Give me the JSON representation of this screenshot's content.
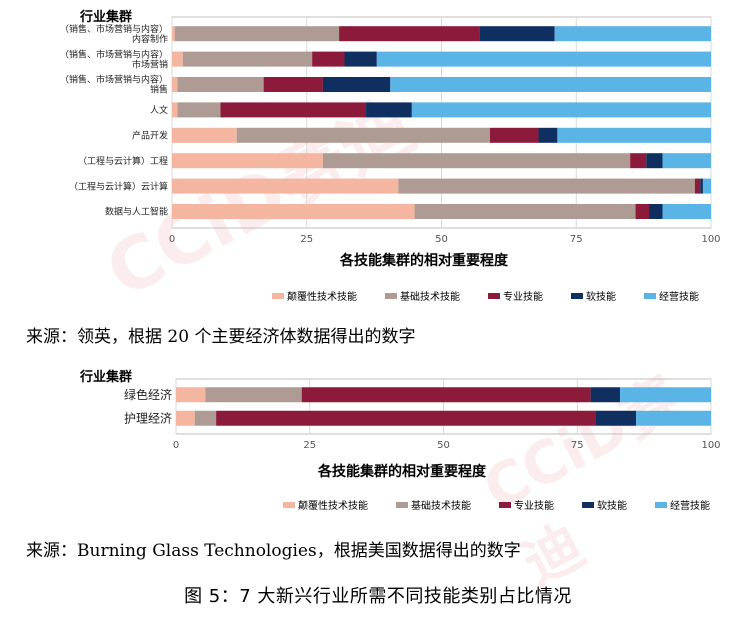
{
  "chart_data": [
    {
      "type": "bar",
      "orientation": "horizontal",
      "stacked": true,
      "ylabel": "行业集群",
      "xlabel": "各技能集群的相对重要程度",
      "xlim": [
        0,
        100
      ],
      "xticks": [
        "0",
        "25",
        "50",
        "75",
        "100"
      ],
      "grid": true,
      "legend_position": "bottom",
      "categories": [
        [
          "（销售、市场营销与内容）",
          "内容制作"
        ],
        [
          "（销售、市场营销与内容）",
          "市场营销"
        ],
        [
          "（销售、市场营销与内容）",
          "销售"
        ],
        [
          "人文"
        ],
        [
          "产品开发"
        ],
        [
          "（工程与云计算）工程"
        ],
        [
          "（工程与云计算）云计算"
        ],
        [
          "数据与人工智能"
        ]
      ],
      "series": [
        {
          "name": "颠覆性技术技能",
          "values": [
            0.5,
            2,
            1,
            1,
            12,
            28,
            42,
            45
          ]
        },
        {
          "name": "基础技术技能",
          "values": [
            30.5,
            24,
            16,
            8,
            47,
            57,
            55,
            41
          ]
        },
        {
          "name": "专业技能",
          "values": [
            26,
            6,
            11,
            27,
            9,
            3,
            1,
            2.5
          ]
        },
        {
          "name": "软技能",
          "values": [
            14,
            6,
            12.5,
            8.5,
            3.5,
            3,
            0.5,
            2.5
          ]
        },
        {
          "name": "经营技能",
          "values": [
            29,
            62,
            59.5,
            55.5,
            28.5,
            9,
            1.5,
            9
          ]
        }
      ]
    },
    {
      "type": "bar",
      "orientation": "horizontal",
      "stacked": true,
      "ylabel": "行业集群",
      "xlabel": "各技能集群的相对重要程度",
      "xlim": [
        0,
        100
      ],
      "xticks": [
        "0",
        "25",
        "50",
        "75",
        "100"
      ],
      "grid": true,
      "legend_position": "bottom",
      "categories": [
        [
          "绿色经济"
        ],
        [
          "护理经济"
        ]
      ],
      "series": [
        {
          "name": "颠覆性技术技能",
          "values": [
            5.5,
            3.5
          ]
        },
        {
          "name": "基础技术技能",
          "values": [
            18,
            4
          ]
        },
        {
          "name": "专业技能",
          "values": [
            54,
            71
          ]
        },
        {
          "name": "软技能",
          "values": [
            5.5,
            7.5
          ]
        },
        {
          "name": "经营技能",
          "values": [
            17,
            14
          ]
        }
      ]
    }
  ],
  "colors": [
    "#F4B6A0",
    "#AE9C94",
    "#8C1A3A",
    "#0E2F5F",
    "#5AB4E6"
  ],
  "source1": "来源：领英，根据 20 个主要经济体数据得出的数字",
  "source2": "来源：Burning Glass Technologies，根据美国数据得出的数字",
  "caption": "图 5：7 大新兴行业所需不同技能类别占比情况",
  "watermark": "CCiD赛迪"
}
